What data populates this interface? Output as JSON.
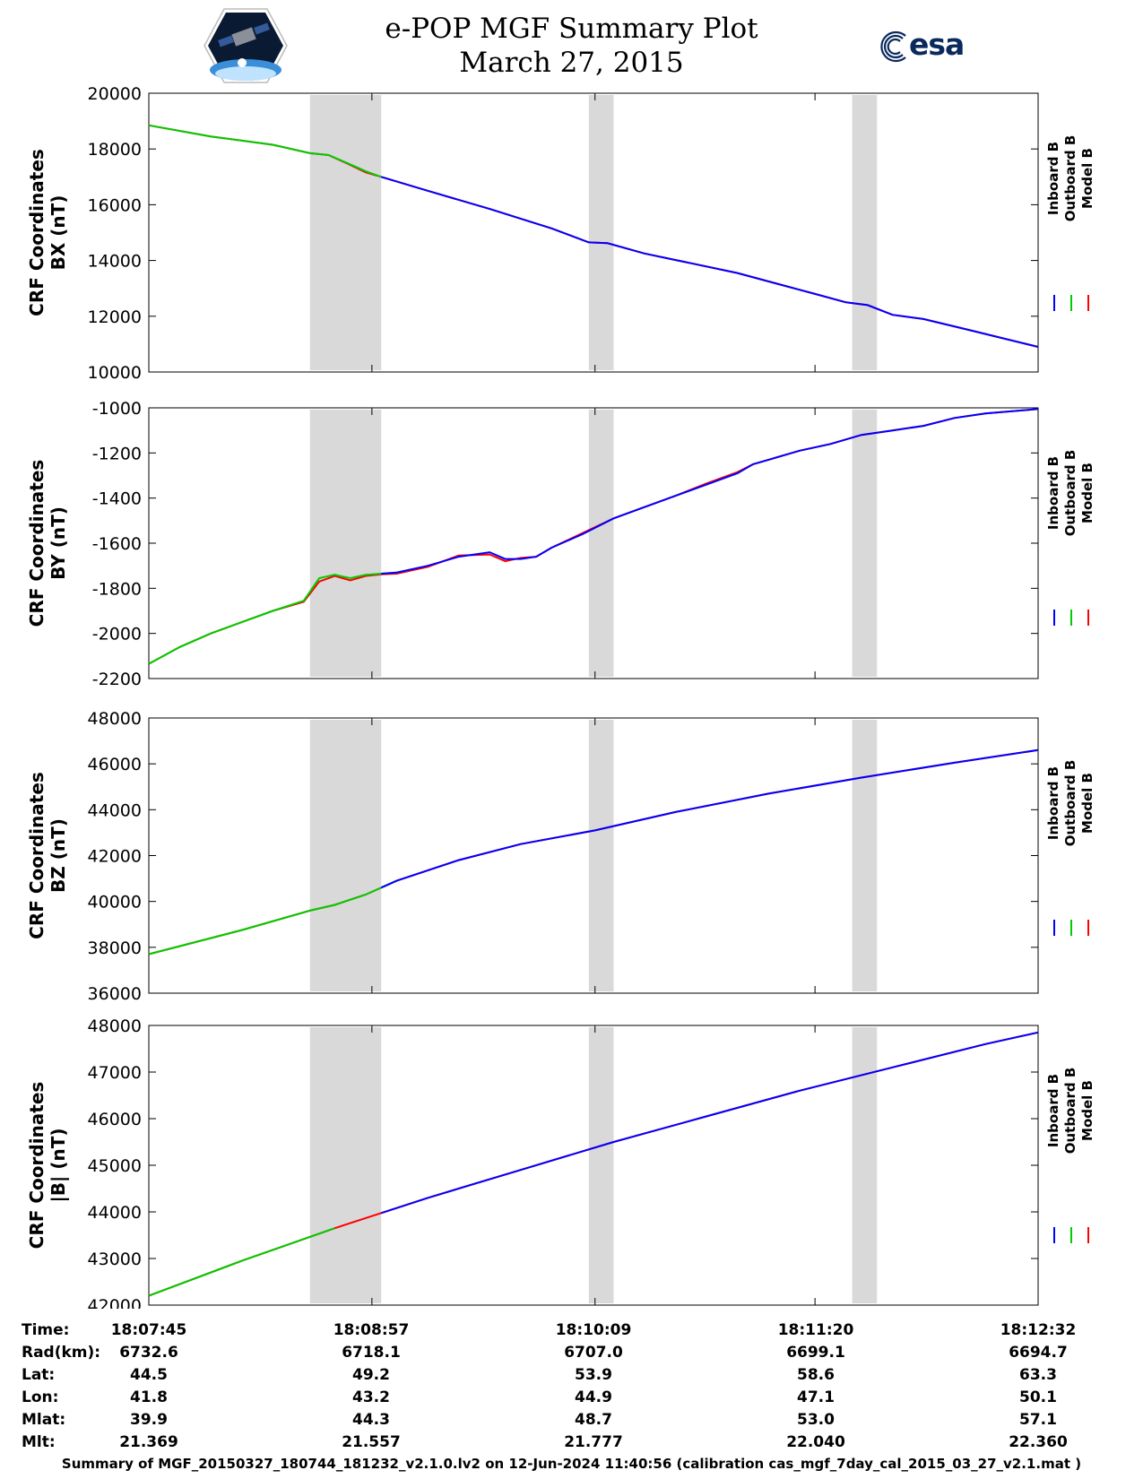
{
  "header": {
    "title_line1": "e-POP MGF Summary Plot",
    "title_line2": "March 27, 2015",
    "logo_left": "epop-satellite-logo",
    "logo_right_text": "esa"
  },
  "colors": {
    "inboard": "#0000ff",
    "outboard": "#00cc00",
    "model": "#ff0000",
    "shading": "#d9d9d9"
  },
  "legend": [
    "Inboard B",
    "Outboard B",
    "Model B"
  ],
  "chart_data": [
    {
      "type": "line",
      "ylabel_line1": "CRF Coordinates",
      "ylabel_line2": "BX (nT)",
      "ylim": [
        10000,
        20000
      ],
      "yticks": [
        10000,
        12000,
        14000,
        16000,
        18000,
        20000
      ],
      "xlim": [
        0,
        287
      ],
      "xtick_positions": [
        0,
        72,
        144,
        215,
        287
      ],
      "shaded_intervals": [
        [
          52,
          75
        ],
        [
          142,
          150
        ],
        [
          227,
          235
        ]
      ],
      "x": [
        0,
        20,
        40,
        52,
        58,
        64,
        70,
        75,
        90,
        110,
        130,
        142,
        148,
        160,
        175,
        190,
        205,
        215,
        225,
        232,
        240,
        250,
        265,
        287
      ],
      "series": [
        {
          "name": "Inboard B",
          "values": [
            18850,
            18450,
            18150,
            17850,
            17780,
            17500,
            17200,
            17000,
            16500,
            15850,
            15150,
            14650,
            14620,
            14250,
            13900,
            13550,
            13100,
            12800,
            12500,
            12400,
            12050,
            11900,
            11500,
            10900
          ]
        },
        {
          "name": "Outboard B",
          "values": [
            18850,
            18450,
            18150,
            17850,
            17780,
            17500,
            17200,
            17000,
            16500,
            15850,
            15150,
            14650,
            14620,
            14250,
            13900,
            13550,
            13100,
            12800,
            12500,
            12400,
            12050,
            11900,
            11500,
            10900
          ]
        },
        {
          "name": "Model B",
          "values": [
            18850,
            18450,
            18150,
            17850,
            17780,
            17480,
            17160,
            17000,
            16500,
            15850,
            15150,
            14650,
            14620,
            14250,
            13900,
            13550,
            13100,
            12800,
            12500,
            12400,
            12050,
            11900,
            11500,
            10900
          ]
        }
      ]
    },
    {
      "type": "line",
      "ylabel_line1": "CRF Coordinates",
      "ylabel_line2": "BY (nT)",
      "ylim": [
        -2200,
        -1000
      ],
      "yticks": [
        -2200,
        -2000,
        -1800,
        -1600,
        -1400,
        -1200,
        -1000
      ],
      "xlim": [
        0,
        287
      ],
      "xtick_positions": [
        0,
        72,
        144,
        215,
        287
      ],
      "shaded_intervals": [
        [
          52,
          75
        ],
        [
          142,
          150
        ],
        [
          227,
          235
        ]
      ],
      "x": [
        0,
        10,
        20,
        30,
        40,
        50,
        55,
        60,
        65,
        70,
        75,
        80,
        90,
        100,
        110,
        115,
        120,
        125,
        130,
        140,
        150,
        160,
        170,
        180,
        190,
        195,
        200,
        210,
        220,
        230,
        240,
        250,
        260,
        270,
        287
      ],
      "series": [
        {
          "name": "Inboard B",
          "values": [
            -2135,
            -2060,
            -2000,
            -1950,
            -1900,
            -1860,
            -1760,
            -1740,
            -1760,
            -1740,
            -1735,
            -1730,
            -1700,
            -1660,
            -1640,
            -1670,
            -1670,
            -1660,
            -1620,
            -1560,
            -1490,
            -1440,
            -1390,
            -1340,
            -1290,
            -1250,
            -1230,
            -1190,
            -1160,
            -1120,
            -1100,
            -1080,
            -1045,
            -1025,
            -1005
          ]
        },
        {
          "name": "Outboard B",
          "values": [
            -2135,
            -2060,
            -2000,
            -1950,
            -1900,
            -1855,
            -1755,
            -1740,
            -1755,
            -1740,
            -1735,
            -1730,
            -1700,
            -1660,
            -1640,
            -1670,
            -1670,
            -1660,
            -1620,
            -1560,
            -1490,
            -1440,
            -1390,
            -1340,
            -1290,
            -1250,
            -1230,
            -1190,
            -1160,
            -1120,
            -1100,
            -1080,
            -1045,
            -1025,
            -1005
          ]
        },
        {
          "name": "Model B",
          "values": [
            -2135,
            -2060,
            -2000,
            -1950,
            -1900,
            -1860,
            -1770,
            -1745,
            -1765,
            -1745,
            -1738,
            -1735,
            -1705,
            -1655,
            -1650,
            -1680,
            -1665,
            -1660,
            -1620,
            -1555,
            -1490,
            -1440,
            -1390,
            -1335,
            -1285,
            -1250,
            -1230,
            -1190,
            -1160,
            -1120,
            -1100,
            -1080,
            -1045,
            -1025,
            -1005
          ]
        }
      ]
    },
    {
      "type": "line",
      "ylabel_line1": "CRF Coordinates",
      "ylabel_line2": "BZ (nT)",
      "ylim": [
        36000,
        48000
      ],
      "yticks": [
        36000,
        38000,
        40000,
        42000,
        44000,
        46000,
        48000
      ],
      "xlim": [
        0,
        287
      ],
      "xtick_positions": [
        0,
        72,
        144,
        215,
        287
      ],
      "shaded_intervals": [
        [
          52,
          75
        ],
        [
          142,
          150
        ],
        [
          227,
          235
        ]
      ],
      "x": [
        0,
        30,
        52,
        60,
        70,
        80,
        100,
        120,
        144,
        170,
        200,
        230,
        260,
        287
      ],
      "series": [
        {
          "name": "Inboard B",
          "values": [
            37700,
            38750,
            39600,
            39850,
            40300,
            40900,
            41800,
            42500,
            43100,
            43900,
            44700,
            45400,
            46050,
            46600
          ]
        },
        {
          "name": "Outboard B",
          "values": [
            37700,
            38750,
            39600,
            39850,
            40300,
            40900,
            41800,
            42500,
            43100,
            43900,
            44700,
            45400,
            46050,
            46600
          ]
        },
        {
          "name": "Model B",
          "values": [
            37700,
            38750,
            39600,
            39850,
            40300,
            40900,
            41800,
            42500,
            43100,
            43900,
            44700,
            45400,
            46050,
            46600
          ]
        }
      ]
    },
    {
      "type": "line",
      "ylabel_line1": "CRF Coordinates",
      "ylabel_line2": "|B| (nT)",
      "ylim": [
        42000,
        48000
      ],
      "yticks": [
        42000,
        43000,
        44000,
        45000,
        46000,
        47000,
        48000
      ],
      "xlim": [
        0,
        287
      ],
      "xtick_positions": [
        0,
        72,
        144,
        215,
        287
      ],
      "shaded_intervals": [
        [
          52,
          75
        ],
        [
          142,
          150
        ],
        [
          227,
          235
        ]
      ],
      "x": [
        0,
        30,
        60,
        90,
        120,
        150,
        180,
        210,
        240,
        270,
        287
      ],
      "series": [
        {
          "name": "Inboard B",
          "values": [
            42200,
            42950,
            43650,
            44300,
            44900,
            45500,
            46050,
            46600,
            47100,
            47600,
            47850
          ]
        },
        {
          "name": "Outboard B",
          "values": [
            42200,
            42950,
            43650,
            44300,
            44900,
            45500,
            46050,
            46600,
            47100,
            47600,
            47850
          ]
        },
        {
          "name": "Model B",
          "values": [
            42200,
            42950,
            43650,
            44300,
            44900,
            45500,
            46050,
            46600,
            47100,
            47600,
            47850
          ]
        }
      ]
    }
  ],
  "info_table": {
    "row_labels": [
      "Time:",
      "Rad(km):",
      "Lat:",
      "Lon:",
      "Mlat:",
      "Mlt:"
    ],
    "columns": [
      [
        "18:07:45",
        "6732.6",
        "44.5",
        "41.8",
        "39.9",
        "21.369"
      ],
      [
        "18:08:57",
        "6718.1",
        "49.2",
        "43.2",
        "44.3",
        "21.557"
      ],
      [
        "18:10:09",
        "6707.0",
        "53.9",
        "44.9",
        "48.7",
        "21.777"
      ],
      [
        "18:11:20",
        "6699.1",
        "58.6",
        "47.1",
        "53.0",
        "22.040"
      ],
      [
        "18:12:32",
        "6694.7",
        "63.3",
        "50.1",
        "57.1",
        "22.360"
      ]
    ]
  },
  "footer": "Summary of MGF_20150327_180744_181232_v2.1.0.lv2 on 12-Jun-2024 11:40:56 (calibration cas_mgf_7day_cal_2015_03_27_v2.1.mat )"
}
